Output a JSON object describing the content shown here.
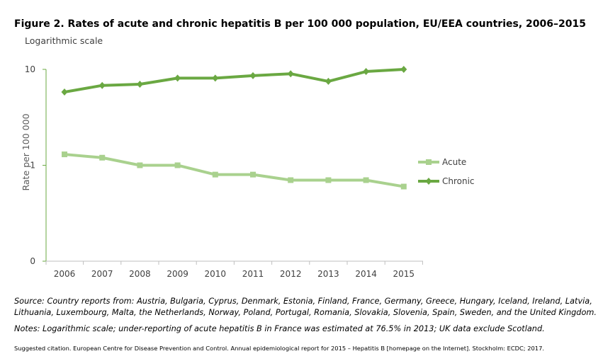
{
  "figure": {
    "title": "Figure 2. Rates of acute and chronic hepatitis B per 100 000 population, EU/EEA countries, 2006–2015",
    "subtitle": "Logarithmic scale",
    "source_line1": "Source: Country reports from: Austria, Bulgaria, Cyprus, Denmark, Estonia, Finland, France, Germany, Greece, Hungary, Iceland, Ireland, Latvia,",
    "source_line2": "Lithuania, Luxembourg, Malta, the Netherlands, Norway, Poland, Portugal, Romania, Slovakia, Slovenia, Spain, Sweden, and the United Kingdom.",
    "notes": "Notes: Logarithmic scale; under-reporting of acute hepatitis B in France was estimated at 76.5% in 2013; UK data exclude Scotland.",
    "citation": "Suggested citation. European Centre for Disease Prevention and Control. Annual epidemiological report for 2015 – Hepatitis B [homepage on the Internet]. Stockholm: ECDC; 2017."
  },
  "chart_data": {
    "type": "line",
    "title": "Figure 2. Rates of acute and chronic hepatitis B per 100 000 population, EU/EEA countries, 2006–2015",
    "xlabel": "",
    "ylabel": "Rate per 100 000",
    "yscale": "log",
    "ylim": [
      0.1,
      10
    ],
    "ytick_values": [
      0.1,
      1,
      10
    ],
    "ytick_labels": [
      "0",
      "1",
      "10"
    ],
    "grid": false,
    "legend_position": "right",
    "categories": [
      "2006",
      "2007",
      "2008",
      "2009",
      "2010",
      "2011",
      "2012",
      "2013",
      "2014",
      "2015"
    ],
    "series": [
      {
        "name": "Acute",
        "color": "#a9d18e",
        "marker": "square",
        "values": [
          1.3,
          1.2,
          1.0,
          1.0,
          0.8,
          0.8,
          0.7,
          0.7,
          0.7,
          0.6
        ]
      },
      {
        "name": "Chronic",
        "color": "#6aa842",
        "marker": "diamond",
        "values": [
          5.8,
          6.8,
          7.0,
          8.1,
          8.1,
          8.6,
          9.0,
          7.5,
          9.5,
          10.0
        ]
      }
    ]
  }
}
